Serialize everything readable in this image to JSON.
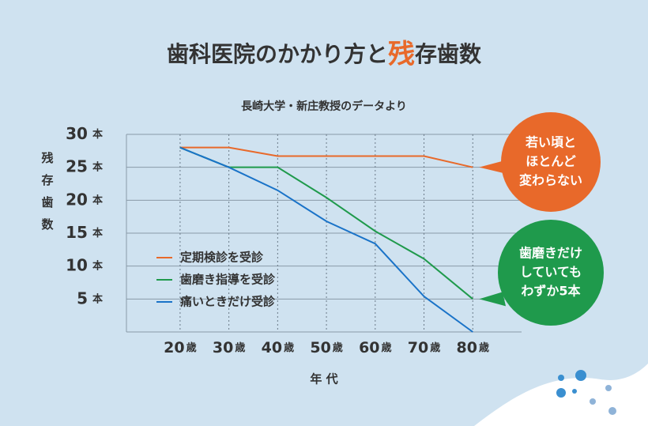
{
  "chart_data": {
    "type": "line",
    "title": {
      "before": "歯科医院のかかり方と",
      "highlight": "残",
      "after": "存歯数"
    },
    "subtitle": "長崎大学・新庄教授のデータより",
    "y_label": "残存歯数",
    "x_label": "年 代",
    "x": [
      20,
      30,
      40,
      50,
      60,
      70,
      80
    ],
    "xlim": [
      9,
      90
    ],
    "xticks": [
      20,
      30,
      40,
      50,
      60,
      70,
      80
    ],
    "x_unit": "歳",
    "ylim": [
      0,
      30
    ],
    "yticks": [
      30,
      25,
      20,
      15,
      10,
      5
    ],
    "y_unit": "本",
    "grid": true,
    "legend": "lower left",
    "series": [
      {
        "name": "定期検診を受診",
        "color": "#e8692a",
        "values": [
          28,
          28,
          26.7,
          26.7,
          26.7,
          26.7,
          25
        ]
      },
      {
        "name": "歯磨き指導を受診",
        "color": "#1f9a4c",
        "values": [
          28,
          25,
          25,
          20.4,
          15.3,
          11.1,
          5
        ]
      },
      {
        "name": "痛いときだけ受診",
        "color": "#1a73c8",
        "values": [
          28,
          25,
          21.5,
          16.8,
          13.4,
          5.4,
          0
        ]
      }
    ],
    "annotations": [
      {
        "lines": [
          "若い頃と",
          "ほとんど",
          "変わらない"
        ],
        "color": "#e8692a"
      },
      {
        "lines": [
          "歯磨きだけ",
          "していても",
          "わずか5本"
        ],
        "color": "#1f9a4c"
      }
    ]
  }
}
